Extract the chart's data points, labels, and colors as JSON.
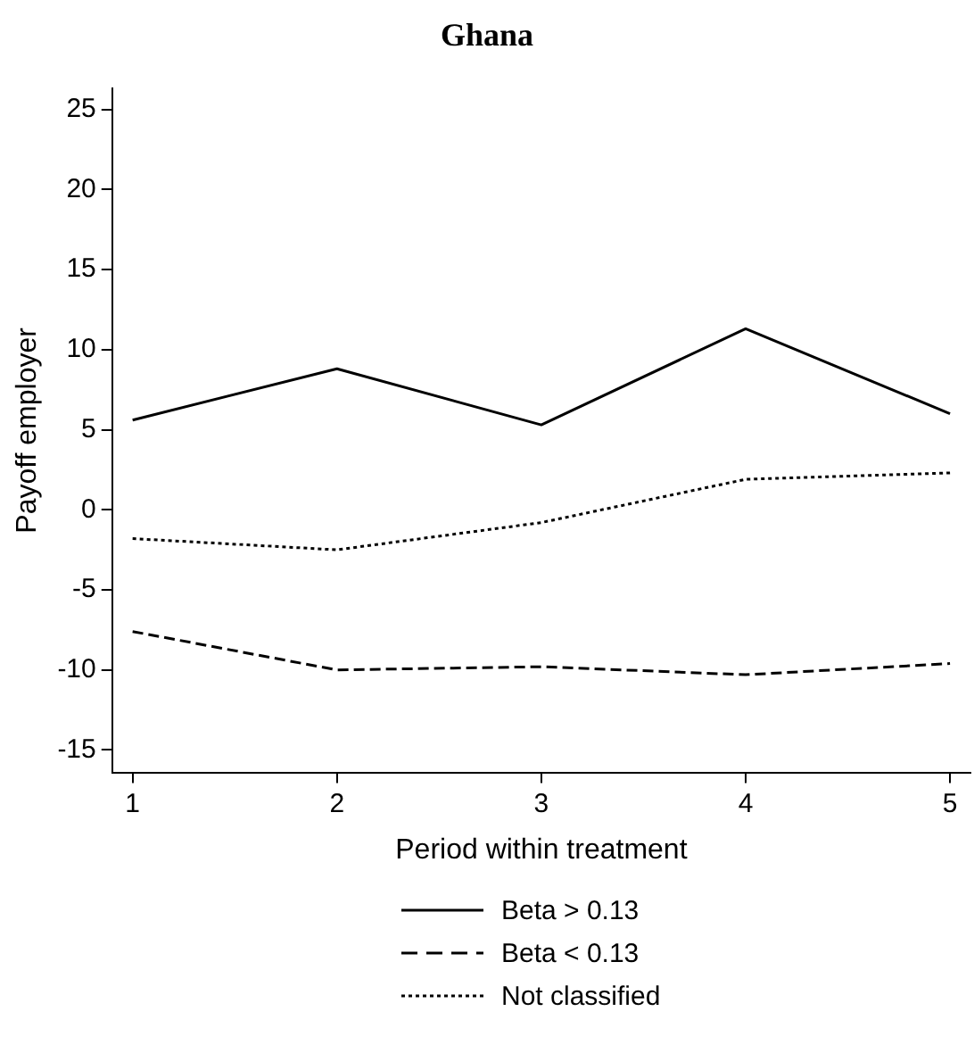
{
  "chart_data": {
    "type": "line",
    "title": "Ghana",
    "xlabel": "Period within treatment",
    "ylabel": "Payoff employer",
    "x": [
      1,
      2,
      3,
      4,
      5
    ],
    "xlim": [
      0.9,
      5.1
    ],
    "xticks": [
      1,
      2,
      3,
      4,
      5
    ],
    "ylim": [
      -16.4,
      26.3
    ],
    "yticks": [
      -15,
      -10,
      -5,
      0,
      5,
      10,
      15,
      20,
      25
    ],
    "grid": false,
    "legend": "bottom",
    "marker": "none",
    "series": [
      {
        "name": "Beta > 0.13",
        "color": "#000000",
        "line_style": "solid",
        "values": [
          5.6,
          8.8,
          5.3,
          11.3,
          6.0
        ]
      },
      {
        "name": "Beta < 0.13",
        "color": "#000000",
        "line_style": "dashed",
        "values": [
          -7.6,
          -10.0,
          -9.8,
          -10.3,
          -9.6
        ]
      },
      {
        "name": "Not classified",
        "color": "#000000",
        "line_style": "dotted",
        "values": [
          -1.8,
          -2.5,
          -0.8,
          1.9,
          2.3
        ]
      }
    ]
  }
}
